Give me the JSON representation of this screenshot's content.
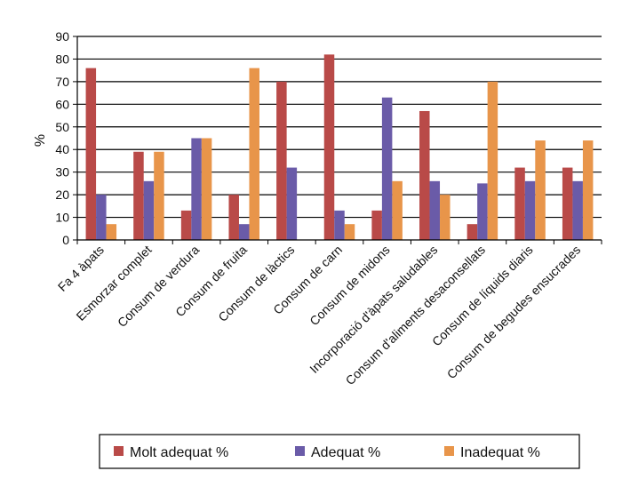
{
  "chart_data": {
    "type": "bar",
    "title": "",
    "xlabel": "",
    "ylabel": "%",
    "ylim": [
      0,
      90
    ],
    "yticks": [
      0,
      10,
      20,
      30,
      40,
      50,
      60,
      70,
      80,
      90
    ],
    "grid": true,
    "legend_position": "bottom",
    "categories": [
      "Fa 4 àpats",
      "Esmorzar complet",
      "Consum de verdura",
      "Consum de fruita",
      "Consum de làctics",
      "Consum de carn",
      "Consum de midons",
      "Incorporació d'àpats saludables",
      "Consum d'aliments desaconsellats",
      "Consum de líquids diaris",
      "Consum de begudes ensucrades"
    ],
    "series": [
      {
        "name": "Molt adequat %",
        "color": "#b94a48",
        "values": [
          76,
          39,
          13,
          20,
          70,
          82,
          13,
          57,
          7,
          32,
          32
        ]
      },
      {
        "name": "Adequat %",
        "color": "#6a5ba8",
        "values": [
          20,
          26,
          45,
          7,
          32,
          13,
          63,
          26,
          25,
          26,
          26
        ]
      },
      {
        "name": "Inadequat %",
        "color": "#e8954a",
        "values": [
          7,
          39,
          45,
          76,
          0,
          7,
          26,
          20,
          70,
          44,
          44
        ]
      }
    ]
  }
}
